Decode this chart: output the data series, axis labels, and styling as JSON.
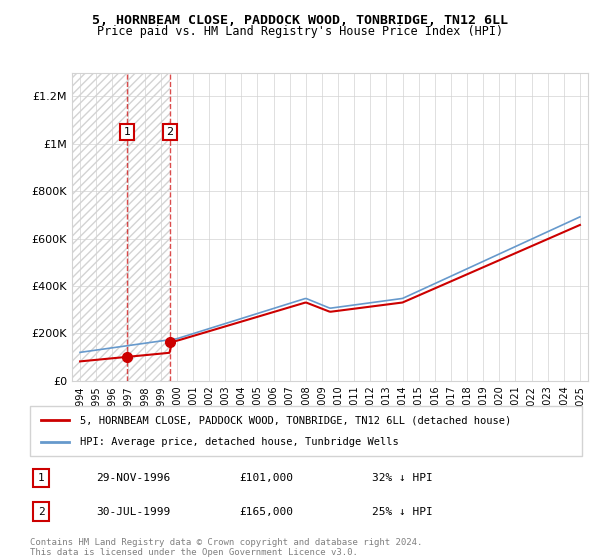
{
  "title1": "5, HORNBEAM CLOSE, PADDOCK WOOD, TONBRIDGE, TN12 6LL",
  "title2": "Price paid vs. HM Land Registry's House Price Index (HPI)",
  "xlabel": "",
  "ylabel": "",
  "ylim": [
    0,
    1300000
  ],
  "yticks": [
    0,
    200000,
    400000,
    600000,
    800000,
    1000000,
    1200000
  ],
  "ytick_labels": [
    "£0",
    "£200K",
    "£400K",
    "£600K",
    "£800K",
    "£1M",
    "£1.2M"
  ],
  "bg_hatch_end_year": 1999.6,
  "sale1_year": 1996.91,
  "sale1_price": 101000,
  "sale1_label": "1",
  "sale2_year": 1999.58,
  "sale2_price": 165000,
  "sale2_label": "2",
  "line_color_house": "#cc0000",
  "line_color_hpi": "#6699cc",
  "legend_house": "5, HORNBEAM CLOSE, PADDOCK WOOD, TONBRIDGE, TN12 6LL (detached house)",
  "legend_hpi": "HPI: Average price, detached house, Tunbridge Wells",
  "table_rows": [
    {
      "num": "1",
      "date": "29-NOV-1996",
      "price": "£101,000",
      "change": "32% ↓ HPI"
    },
    {
      "num": "2",
      "date": "30-JUL-1999",
      "price": "£165,000",
      "change": "25% ↓ HPI"
    }
  ],
  "footer": "Contains HM Land Registry data © Crown copyright and database right 2024.\nThis data is licensed under the Open Government Licence v3.0.",
  "xtick_years": [
    1994,
    1995,
    1996,
    1997,
    1998,
    1999,
    2000,
    2001,
    2002,
    2003,
    2004,
    2005,
    2006,
    2007,
    2008,
    2009,
    2010,
    2011,
    2012,
    2013,
    2014,
    2015,
    2016,
    2017,
    2018,
    2019,
    2020,
    2021,
    2022,
    2023,
    2024,
    2025
  ]
}
